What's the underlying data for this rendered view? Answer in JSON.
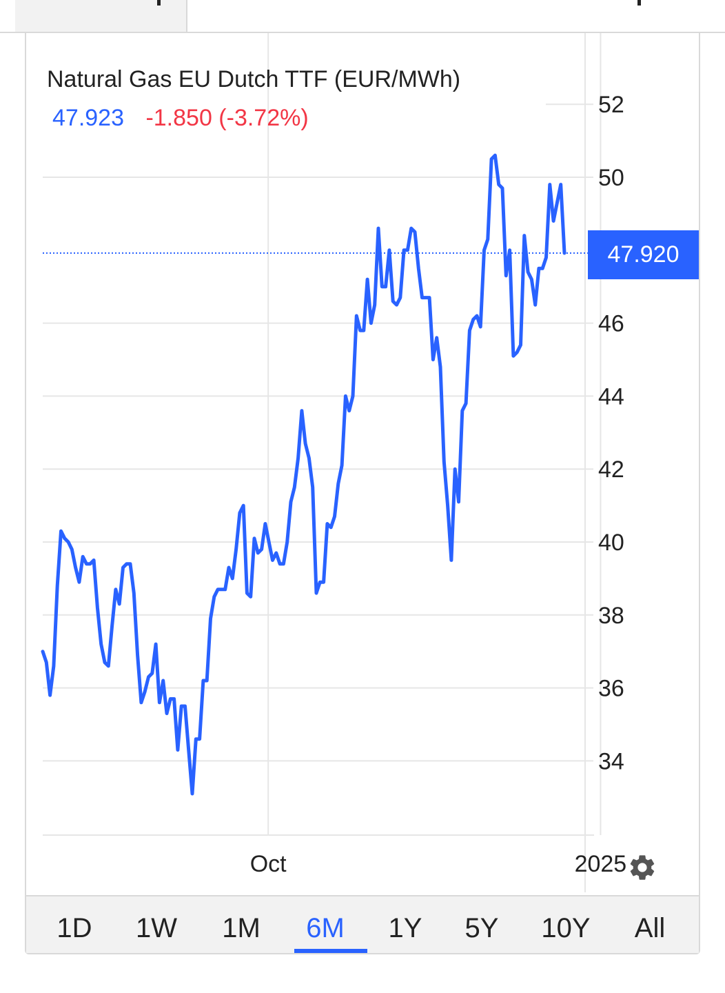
{
  "chart_title": "Natural Gas EU Dutch TTF (EUR/MWh)",
  "quote": {
    "price": "47.923",
    "change": "-1.850 (-3.72%)"
  },
  "last_price_label": "47.920",
  "colors": {
    "accent": "#2962ff",
    "negative": "#f23645",
    "grid": "#e6e6e6"
  },
  "ranges": [
    {
      "label": "1D",
      "active": false
    },
    {
      "label": "1W",
      "active": false
    },
    {
      "label": "1M",
      "active": false
    },
    {
      "label": "6M",
      "active": true
    },
    {
      "label": "1Y",
      "active": false
    },
    {
      "label": "5Y",
      "active": false
    },
    {
      "label": "10Y",
      "active": false
    },
    {
      "label": "All",
      "active": false
    }
  ],
  "settings_icon": "gear-icon",
  "chart_data": {
    "type": "line",
    "title": "Natural Gas EU Dutch TTF (EUR/MWh)",
    "yticks": [
      52,
      50,
      46,
      44,
      42,
      40,
      38,
      36,
      34
    ],
    "ylim": [
      31,
      54.5
    ],
    "xticks": [
      {
        "label": "Oct",
        "x": 61.8
      },
      {
        "label": "2025",
        "x": 152.9
      }
    ],
    "xlim": [
      0,
      197
    ],
    "grid": true,
    "last_value": 47.92,
    "series": [
      {
        "points": [
          [
            0,
            37.0
          ],
          [
            1,
            36.7
          ],
          [
            2,
            35.8
          ],
          [
            3,
            36.6
          ],
          [
            4,
            38.8
          ],
          [
            5,
            40.3
          ],
          [
            6,
            40.1
          ],
          [
            7,
            40.0
          ],
          [
            8,
            39.8
          ],
          [
            9,
            39.3
          ],
          [
            10,
            38.9
          ],
          [
            11,
            39.6
          ],
          [
            12,
            39.4
          ],
          [
            13,
            39.4
          ],
          [
            14,
            39.5
          ],
          [
            15,
            38.2
          ],
          [
            16,
            37.2
          ],
          [
            17,
            36.7
          ],
          [
            18,
            36.6
          ],
          [
            19,
            37.7
          ],
          [
            20,
            38.7
          ],
          [
            21,
            38.3
          ],
          [
            22,
            39.3
          ],
          [
            23,
            39.4
          ],
          [
            24,
            39.4
          ],
          [
            25,
            38.6
          ],
          [
            26,
            36.9
          ],
          [
            27,
            35.6
          ],
          [
            28,
            35.9
          ],
          [
            29,
            36.3
          ],
          [
            30,
            36.4
          ],
          [
            31,
            37.2
          ],
          [
            32,
            35.6
          ],
          [
            33,
            36.2
          ],
          [
            34,
            35.3
          ],
          [
            35,
            35.7
          ],
          [
            36,
            35.7
          ],
          [
            37,
            34.3
          ],
          [
            38,
            35.5
          ],
          [
            39,
            35.5
          ],
          [
            40,
            34.3
          ],
          [
            41,
            33.1
          ],
          [
            42,
            34.6
          ],
          [
            43,
            34.6
          ],
          [
            44,
            36.2
          ],
          [
            45,
            36.2
          ],
          [
            46,
            37.9
          ],
          [
            47,
            38.5
          ],
          [
            48,
            38.7
          ],
          [
            49,
            38.7
          ],
          [
            50,
            38.7
          ],
          [
            51,
            39.3
          ],
          [
            52,
            39.0
          ],
          [
            53,
            39.8
          ],
          [
            54,
            40.8
          ],
          [
            55,
            41.0
          ],
          [
            56,
            38.6
          ],
          [
            57,
            38.5
          ],
          [
            58,
            40.1
          ],
          [
            59,
            39.7
          ],
          [
            60,
            39.8
          ],
          [
            61,
            40.5
          ],
          [
            62,
            40.0
          ],
          [
            63,
            39.5
          ],
          [
            64,
            39.7
          ],
          [
            65,
            39.4
          ],
          [
            66,
            39.4
          ],
          [
            67,
            40.0
          ],
          [
            68,
            41.1
          ],
          [
            69,
            41.5
          ],
          [
            70,
            42.3
          ],
          [
            71,
            43.6
          ],
          [
            72,
            42.7
          ],
          [
            73,
            42.3
          ],
          [
            74,
            41.5
          ],
          [
            75,
            38.6
          ],
          [
            76,
            38.9
          ],
          [
            77,
            38.9
          ],
          [
            78,
            40.5
          ],
          [
            79,
            40.4
          ],
          [
            80,
            40.7
          ],
          [
            81,
            41.6
          ],
          [
            82,
            42.1
          ],
          [
            83,
            44.0
          ],
          [
            84,
            43.6
          ],
          [
            85,
            44.0
          ],
          [
            86,
            46.2
          ],
          [
            87,
            45.8
          ],
          [
            88,
            45.8
          ],
          [
            89,
            47.2
          ],
          [
            90,
            46.0
          ],
          [
            91,
            46.5
          ],
          [
            92,
            48.6
          ],
          [
            93,
            47.0
          ],
          [
            94,
            47.0
          ],
          [
            95,
            48.0
          ],
          [
            96,
            46.6
          ],
          [
            97,
            46.5
          ],
          [
            98,
            46.7
          ],
          [
            99,
            48.0
          ],
          [
            100,
            48.0
          ],
          [
            101,
            48.6
          ],
          [
            102,
            48.5
          ],
          [
            103,
            47.5
          ],
          [
            104,
            46.7
          ],
          [
            105,
            46.7
          ],
          [
            106,
            46.7
          ],
          [
            107,
            45.0
          ],
          [
            108,
            45.6
          ],
          [
            109,
            44.8
          ],
          [
            110,
            42.2
          ],
          [
            111,
            41.0
          ],
          [
            112,
            39.5
          ],
          [
            113,
            42.0
          ],
          [
            114,
            41.1
          ],
          [
            115,
            43.6
          ],
          [
            116,
            43.8
          ],
          [
            117,
            45.8
          ],
          [
            118,
            46.1
          ],
          [
            119,
            46.2
          ],
          [
            120,
            45.9
          ],
          [
            121,
            48.0
          ],
          [
            122,
            48.3
          ],
          [
            123,
            50.5
          ],
          [
            124,
            50.6
          ],
          [
            125,
            49.8
          ],
          [
            126,
            49.7
          ],
          [
            127,
            47.3
          ],
          [
            128,
            48.0
          ],
          [
            129,
            45.1
          ],
          [
            130,
            45.2
          ],
          [
            131,
            45.4
          ],
          [
            132,
            48.4
          ],
          [
            133,
            47.4
          ],
          [
            134,
            47.2
          ],
          [
            135,
            46.5
          ],
          [
            136,
            47.5
          ],
          [
            137,
            47.5
          ],
          [
            138,
            47.8
          ],
          [
            139,
            49.8
          ],
          [
            140,
            48.8
          ],
          [
            141,
            49.3
          ],
          [
            142,
            49.8
          ],
          [
            143,
            47.92
          ]
        ]
      }
    ]
  }
}
